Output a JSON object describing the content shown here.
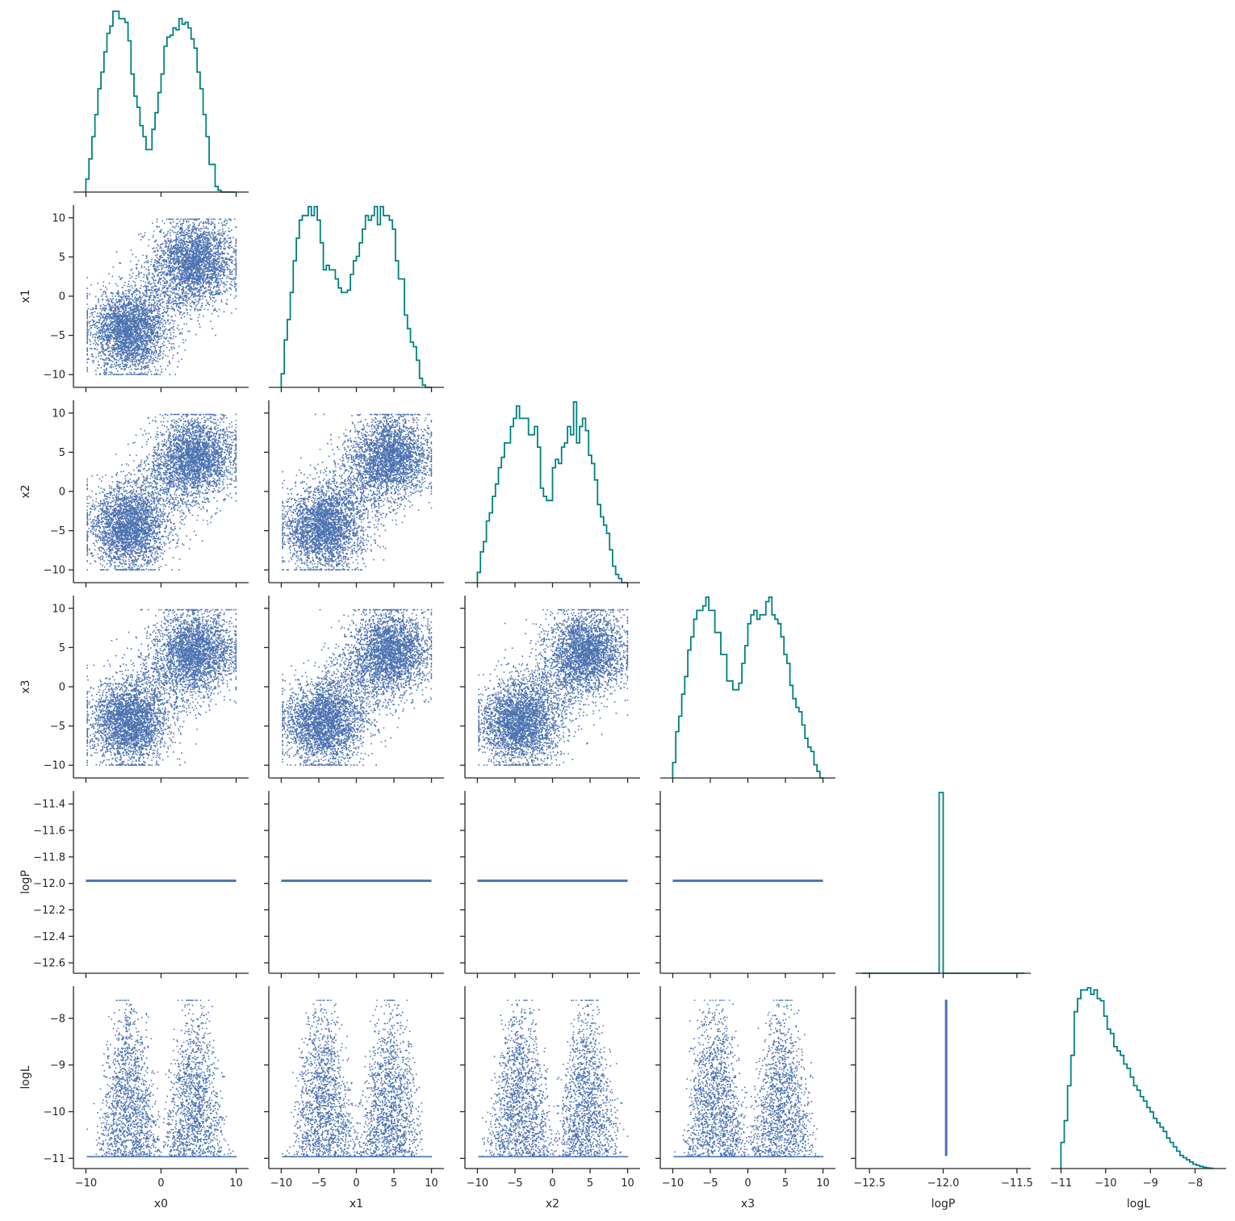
{
  "chart_data": {
    "type": "scatter",
    "kind": "corner-pairplot",
    "variables": [
      "x0",
      "x1",
      "x2",
      "x3",
      "logP",
      "logL"
    ],
    "colors": {
      "histogram": "#008080",
      "scatter": "#4c72b0",
      "axis": "#262626"
    },
    "grid": false,
    "legend": "none",
    "axes": {
      "x0": {
        "range": [
          -10.8,
          10.8
        ],
        "ticks": [
          -10,
          0,
          10
        ],
        "tick_labels": [
          "−10",
          "0",
          "10"
        ]
      },
      "x1": {
        "range": [
          -10.8,
          10.8
        ],
        "ticks": [
          -10,
          -5,
          0,
          5,
          10
        ],
        "tick_labels": [
          "−10",
          "−5",
          "0",
          "5",
          "10"
        ]
      },
      "x2": {
        "range": [
          -10.8,
          10.8
        ],
        "ticks": [
          -10,
          -5,
          0,
          5,
          10
        ],
        "tick_labels": [
          "−10",
          "−5",
          "0",
          "5",
          "10"
        ]
      },
      "x3": {
        "range": [
          -10.8,
          10.8
        ],
        "ticks": [
          -10,
          -5,
          0,
          5,
          10
        ],
        "tick_labels": [
          "−10",
          "−5",
          "0",
          "5",
          "10"
        ]
      },
      "logP": {
        "range": [
          -12.63,
          -11.35
        ],
        "ticks": [
          -12.6,
          -12.4,
          -12.2,
          -12.0,
          -11.8,
          -11.6,
          -11.4
        ],
        "tick_labels": [
          "−12.6",
          "−12.4",
          "−12.2",
          "−12.0",
          "−11.8",
          "−11.6",
          "−11.4"
        ]
      },
      "logL": {
        "range": [
          -11.08,
          -7.45
        ],
        "ticks": [
          -11,
          -10,
          -9,
          -8
        ],
        "tick_labels": [
          "−11",
          "−10",
          "−9",
          "−8"
        ]
      }
    },
    "logP_axis_x": {
      "range": [
        -12.55,
        -11.45
      ],
      "ticks": [
        -12.5,
        -12.0,
        -11.5
      ],
      "tick_labels": [
        "−12.5",
        "−12.0",
        "−11.5"
      ]
    },
    "logP_value": -11.98,
    "histograms": {
      "x0": {
        "range": [
          -10,
          10
        ],
        "bins": 50,
        "counts": [
          70,
          180,
          300,
          420,
          560,
          650,
          760,
          860,
          900,
          980,
          980,
          940,
          940,
          920,
          820,
          640,
          520,
          460,
          360,
          300,
          230,
          230,
          340,
          430,
          540,
          640,
          790,
          840,
          850,
          890,
          880,
          940,
          910,
          920,
          890,
          830,
          780,
          650,
          560,
          420,
          300,
          150,
          150,
          30,
          10,
          0,
          0,
          0,
          0,
          0
        ]
      },
      "x1": {
        "range": [
          -10,
          10
        ],
        "bins": 50,
        "counts": [
          60,
          210,
          300,
          420,
          560,
          660,
          740,
          760,
          760,
          800,
          760,
          800,
          740,
          640,
          520,
          540,
          520,
          520,
          480,
          440,
          420,
          420,
          430,
          500,
          560,
          580,
          640,
          700,
          760,
          740,
          760,
          800,
          720,
          800,
          760,
          760,
          740,
          700,
          560,
          480,
          480,
          320,
          260,
          200,
          180,
          120,
          40,
          10,
          0,
          0
        ]
      },
      "x2": {
        "range": [
          -10,
          10
        ],
        "bins": 50,
        "counts": [
          50,
          150,
          200,
          300,
          340,
          420,
          480,
          560,
          610,
          680,
          680,
          760,
          800,
          860,
          800,
          800,
          800,
          720,
          720,
          760,
          660,
          460,
          420,
          400,
          400,
          560,
          600,
          580,
          660,
          680,
          760,
          720,
          880,
          680,
          760,
          800,
          740,
          620,
          580,
          500,
          380,
          320,
          280,
          240,
          160,
          80,
          40,
          20,
          0,
          0
        ]
      },
      "x3": {
        "range": [
          -10,
          10
        ],
        "bins": 50,
        "counts": [
          70,
          210,
          280,
          380,
          460,
          580,
          640,
          720,
          760,
          760,
          780,
          820,
          760,
          760,
          660,
          660,
          560,
          560,
          440,
          440,
          400,
          400,
          430,
          520,
          600,
          700,
          740,
          760,
          720,
          740,
          740,
          800,
          820,
          740,
          720,
          700,
          640,
          560,
          520,
          420,
          360,
          320,
          300,
          240,
          180,
          140,
          120,
          60,
          30,
          0
        ]
      },
      "logP": {
        "range": [
          -12.55,
          -11.45
        ],
        "bins": 40,
        "counts": [
          0,
          0,
          0,
          0,
          0,
          0,
          0,
          0,
          0,
          0,
          0,
          0,
          0,
          0,
          0,
          0,
          0,
          0,
          0,
          1000,
          0,
          0,
          0,
          0,
          0,
          0,
          0,
          0,
          0,
          0,
          0,
          0,
          0,
          0,
          0,
          0,
          0,
          0,
          0,
          0
        ]
      },
      "logL": {
        "range": [
          -11.0,
          -7.6
        ],
        "bins": 46,
        "counts": [
          120,
          220,
          380,
          520,
          720,
          780,
          820,
          820,
          830,
          800,
          820,
          780,
          770,
          700,
          640,
          620,
          560,
          540,
          520,
          480,
          460,
          420,
          380,
          360,
          330,
          310,
          280,
          260,
          230,
          210,
          190,
          170,
          140,
          120,
          100,
          80,
          60,
          50,
          40,
          30,
          20,
          15,
          10,
          6,
          3,
          1
        ]
      }
    }
  },
  "annotations": {
    "font_note": ""
  }
}
